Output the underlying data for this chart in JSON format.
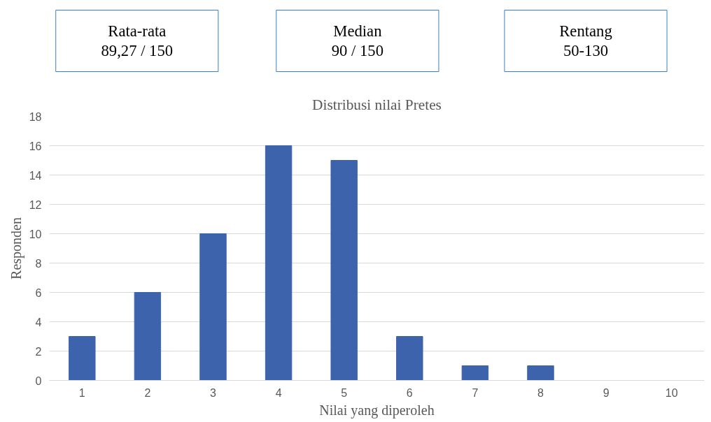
{
  "chart_data": {
    "type": "bar",
    "title": "Distribusi nilai Pretes",
    "xlabel": "Nilai yang diperoleh",
    "ylabel": "Responden",
    "categories": [
      "1",
      "2",
      "3",
      "4",
      "5",
      "6",
      "7",
      "8",
      "9",
      "10"
    ],
    "values": [
      3,
      6,
      10,
      16,
      15,
      3,
      1,
      1,
      0,
      0
    ],
    "color": "#3d63ad",
    "ylim": [
      0,
      18
    ],
    "yticks": [
      0,
      2,
      4,
      6,
      8,
      10,
      12,
      14,
      16,
      18
    ],
    "grid": "y",
    "annotations": [
      "Rata-rata",
      "89,27 / 150",
      "Median",
      "90 / 150",
      "Rentang",
      "50-130"
    ]
  }
}
